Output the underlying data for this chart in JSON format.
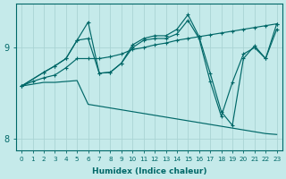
{
  "xlabel": "Humidex (Indice chaleur)",
  "background_color": "#c5eaea",
  "grid_color": "#aad4d4",
  "line_color": "#006868",
  "xlim": [
    -0.5,
    23.5
  ],
  "ylim": [
    7.88,
    9.48
  ],
  "yticks": [
    8,
    9
  ],
  "xticks": [
    0,
    1,
    2,
    3,
    4,
    5,
    6,
    7,
    8,
    9,
    10,
    11,
    12,
    13,
    14,
    15,
    16,
    17,
    18,
    19,
    20,
    21,
    22,
    23
  ],
  "series": [
    {
      "x": [
        0,
        1,
        2,
        3,
        4,
        5,
        6,
        7,
        8,
        9,
        10,
        11,
        12,
        13,
        14,
        15,
        16,
        17,
        18,
        19,
        20,
        21,
        22,
        23
      ],
      "y": [
        8.58,
        8.6,
        8.62,
        8.62,
        8.63,
        8.64,
        8.38,
        8.36,
        8.34,
        8.32,
        8.3,
        8.28,
        8.26,
        8.24,
        8.22,
        8.2,
        8.18,
        8.16,
        8.14,
        8.12,
        8.1,
        8.08,
        8.06,
        8.05
      ],
      "marker": false
    },
    {
      "x": [
        0,
        1,
        2,
        3,
        4,
        5,
        6,
        7,
        8,
        9,
        10,
        11,
        12,
        13,
        14,
        15,
        16,
        17,
        18,
        19,
        20,
        21,
        22,
        23
      ],
      "y": [
        8.58,
        8.63,
        8.67,
        8.7,
        8.78,
        8.88,
        8.88,
        8.88,
        8.9,
        8.93,
        8.98,
        9.0,
        9.03,
        9.05,
        9.08,
        9.1,
        9.12,
        9.14,
        9.16,
        9.18,
        9.2,
        9.22,
        9.24,
        9.26
      ],
      "marker": true
    },
    {
      "x": [
        0,
        2,
        3,
        4,
        5,
        6,
        7,
        8,
        9,
        10,
        11,
        12,
        13,
        14,
        15,
        16,
        17,
        18,
        19,
        20,
        21,
        22,
        23
      ],
      "y": [
        8.58,
        8.73,
        8.8,
        8.88,
        9.08,
        9.28,
        8.72,
        8.73,
        8.83,
        9.03,
        9.1,
        9.13,
        9.13,
        9.2,
        9.36,
        9.12,
        8.72,
        8.3,
        8.15,
        8.88,
        9.02,
        8.88,
        9.26
      ],
      "marker": true
    },
    {
      "x": [
        0,
        2,
        3,
        4,
        5,
        6,
        7,
        8,
        9,
        10,
        11,
        12,
        13,
        14,
        15,
        16,
        17,
        18,
        19,
        20,
        21,
        22,
        23
      ],
      "y": [
        8.58,
        8.73,
        8.8,
        8.88,
        9.08,
        9.1,
        8.72,
        8.73,
        8.83,
        9.0,
        9.08,
        9.1,
        9.1,
        9.15,
        9.3,
        9.1,
        8.63,
        8.25,
        8.62,
        8.93,
        9.0,
        8.88,
        9.2
      ],
      "marker": true
    }
  ]
}
